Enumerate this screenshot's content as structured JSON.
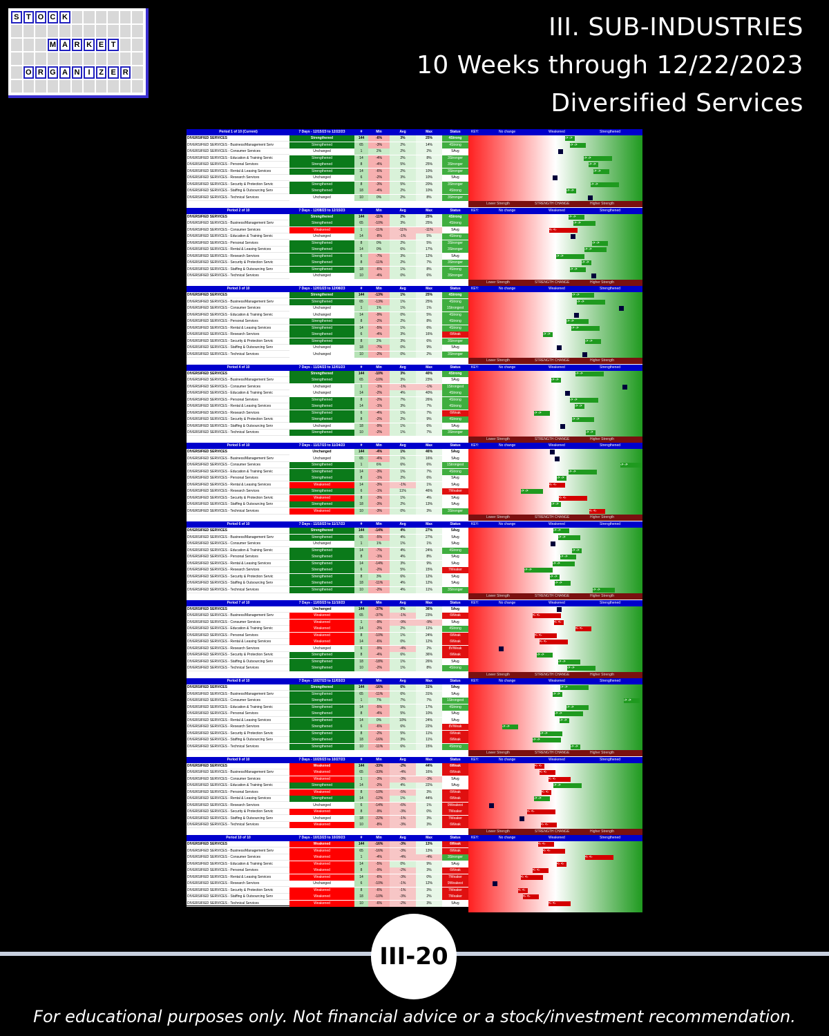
{
  "logo": {
    "rows": [
      [
        "S",
        "T",
        "O",
        "C",
        "K",
        "",
        "",
        "",
        "",
        "",
        ""
      ],
      [
        "",
        "",
        "",
        "",
        "",
        "",
        "",
        "",
        "",
        "",
        ""
      ],
      [
        "",
        "",
        "",
        "M",
        "A",
        "R",
        "K",
        "E",
        "T",
        "",
        ""
      ],
      [
        "",
        "",
        "",
        "",
        "",
        "",
        "",
        "",
        "",
        "",
        ""
      ],
      [
        "",
        "O",
        "R",
        "G",
        "A",
        "N",
        "I",
        "Z",
        "E",
        "R",
        ""
      ],
      [
        "",
        "",
        "",
        "",
        "",
        "",
        "",
        "",
        "",
        "",
        ""
      ]
    ]
  },
  "title": {
    "line1": "III. SUB-INDUSTRIES",
    "line2": "10 Weeks through 12/22/2023",
    "line3": "Diversified Services"
  },
  "table_headers": [
    "#",
    "Min",
    "Avg",
    "Max",
    "Status"
  ],
  "key": {
    "label": "KEY:",
    "no_change": "No change",
    "weakened": "Weakened",
    "strengthened": "Strengthened"
  },
  "strength_bar": {
    "lower": "Lower Strength",
    "change": "STRENGTH CHANGE",
    "higher": "Higher Strength"
  },
  "row_names": [
    "DIVERSIFIED SERVICES",
    "DIVERSIFIED SERVICES - Business/Management Serv",
    "DIVERSIFIED SERVICES - Consumer Services",
    "DIVERSIFIED SERVICES - Education & Training Servic",
    "DIVERSIFIED SERVICES - Personal Services",
    "DIVERSIFIED SERVICES - Rental & Leasing Services",
    "DIVERSIFIED SERVICES - Research Services",
    "DIVERSIFIED SERVICES - Security & Protection Servic",
    "DIVERSIFIED SERVICES - Staffing & Outsourcing Serv",
    "DIVERSIFIED SERVICES - Technical Services"
  ],
  "counts": [
    "144",
    "65",
    "1",
    "14",
    "8",
    "14",
    "6",
    "8",
    "18",
    "10"
  ],
  "periods": [
    {
      "label": "Period 1 of 10 (Current)",
      "dates": "7 Days - 12/15/23 to 12/22/23",
      "rows": [
        [
          "Strengthened",
          "-6%",
          "3%",
          "25%",
          "4Strong"
        ],
        [
          "Strengthened",
          "-3%",
          "2%",
          "14%",
          "4Strong"
        ],
        [
          "Unchanged",
          "2%",
          "2%",
          "2%",
          "5Avg"
        ],
        [
          "Strengthened",
          "-4%",
          "2%",
          "8%",
          "3Stronger"
        ],
        [
          "Strengthened",
          "-4%",
          "5%",
          "25%",
          "3Stronger"
        ],
        [
          "Strengthened",
          "-6%",
          "2%",
          "10%",
          "3Stronger"
        ],
        [
          "Unchanged",
          "-2%",
          "3%",
          "10%",
          "5Avg"
        ],
        [
          "Strengthened",
          "-3%",
          "5%",
          "20%",
          "3Stronger"
        ],
        [
          "Strengthened",
          "-4%",
          "2%",
          "10%",
          "4Strong"
        ],
        [
          "Unchanged",
          "0%",
          "2%",
          "8%",
          "3Stronger"
        ]
      ]
    },
    {
      "label": "Period 2 of 10",
      "dates": "7 Days - 12/08/23 to 12/15/23",
      "rows": [
        [
          "Strengthened",
          "-11%",
          "2%",
          "25%",
          "4Strong"
        ],
        [
          "Strengthened",
          "-10%",
          "3%",
          "25%",
          "4Strong"
        ],
        [
          "Weakened",
          "-11%",
          "-11%",
          "-11%",
          "5Avg"
        ],
        [
          "Unchanged",
          "-8%",
          "-1%",
          "5%",
          "4Strong"
        ],
        [
          "Strengthened",
          "0%",
          "2%",
          "5%",
          "3Stronger"
        ],
        [
          "Strengthened",
          "0%",
          "6%",
          "17%",
          "3Stronger"
        ],
        [
          "Strengthened",
          "-7%",
          "3%",
          "12%",
          "5Avg"
        ],
        [
          "Strengthened",
          "-11%",
          "2%",
          "7%",
          "3Stronger"
        ],
        [
          "Strengthened",
          "-6%",
          "1%",
          "8%",
          "4Strong"
        ],
        [
          "Unchanged",
          "-4%",
          "0%",
          "6%",
          "3Stronger"
        ]
      ]
    },
    {
      "label": "Period 3 of 10",
      "dates": "7 Days - 12/01/23 to 12/08/23",
      "rows": [
        [
          "Strengthened",
          "-13%",
          "1%",
          "25%",
          "4Strong"
        ],
        [
          "Strengthened",
          "-13%",
          "1%",
          "25%",
          "4Strong"
        ],
        [
          "Unchanged",
          "1%",
          "1%",
          "1%",
          "1Strongest"
        ],
        [
          "Unchanged",
          "-9%",
          "0%",
          "5%",
          "4Strong"
        ],
        [
          "Strengthened",
          "-2%",
          "2%",
          "8%",
          "4Strong"
        ],
        [
          "Strengthened",
          "-5%",
          "1%",
          "6%",
          "4Strong"
        ],
        [
          "Strengthened",
          "-4%",
          "3%",
          "16%",
          "6Weak"
        ],
        [
          "Strengthened",
          "2%",
          "3%",
          "6%",
          "3Stronger"
        ],
        [
          "Unchanged",
          "-7%",
          "0%",
          "9%",
          "5Avg"
        ],
        [
          "Unchanged",
          "-2%",
          "0%",
          "2%",
          "3Stronger"
        ]
      ]
    },
    {
      "label": "Period 4 of 10",
      "dates": "7 Days - 11/24/23 to 12/01/23",
      "rows": [
        [
          "Strengthened",
          "-10%",
          "3%",
          "40%",
          "4Strong"
        ],
        [
          "Strengthened",
          "-10%",
          "3%",
          "23%",
          "5Avg"
        ],
        [
          "Unchanged",
          "-1%",
          "-1%",
          "-1%",
          "1Strongest"
        ],
        [
          "Unchanged",
          "-2%",
          "4%",
          "40%",
          "4Strong"
        ],
        [
          "Strengthened",
          "-2%",
          "7%",
          "26%",
          "4Strong"
        ],
        [
          "Strengthened",
          "-1%",
          "3%",
          "7%",
          "4Strong"
        ],
        [
          "Strengthened",
          "-4%",
          "1%",
          "7%",
          "6Weak"
        ],
        [
          "Strengthened",
          "-2%",
          "2%",
          "9%",
          "4Strong"
        ],
        [
          "Unchanged",
          "-9%",
          "1%",
          "6%",
          "5Avg"
        ],
        [
          "Strengthened",
          "-2%",
          "1%",
          "7%",
          "3Stronger"
        ]
      ]
    },
    {
      "label": "Period 5 of 10",
      "dates": "7 Days - 11/17/23 to 11/24/23",
      "rows": [
        [
          "Unchanged",
          "-4%",
          "1%",
          "46%",
          "5Avg"
        ],
        [
          "Unchanged",
          "-4%",
          "1%",
          "16%",
          "5Avg"
        ],
        [
          "Strengthened",
          "6%",
          "6%",
          "6%",
          "1Strongest"
        ],
        [
          "Strengthened",
          "-3%",
          "1%",
          "7%",
          "4Strong"
        ],
        [
          "Strengthened",
          "-1%",
          "2%",
          "6%",
          "5Avg"
        ],
        [
          "Weakened",
          "-3%",
          "-1%",
          "1%",
          "5Avg"
        ],
        [
          "Strengthened",
          "-1%",
          "11%",
          "46%",
          "7Weaker"
        ],
        [
          "Weakened",
          "-3%",
          "1%",
          "4%",
          "5Avg"
        ],
        [
          "Strengthened",
          "-3%",
          "2%",
          "13%",
          "5Avg"
        ],
        [
          "Weakened",
          "-3%",
          "0%",
          "3%",
          "3Stronger"
        ]
      ]
    },
    {
      "label": "Period 6 of 10",
      "dates": "7 Days - 11/10/23 to 11/17/23",
      "rows": [
        [
          "Strengthened",
          "-14%",
          "4%",
          "27%",
          "5Avg"
        ],
        [
          "Strengthened",
          "-5%",
          "4%",
          "27%",
          "5Avg"
        ],
        [
          "Unchanged",
          "1%",
          "1%",
          "1%",
          "5Avg"
        ],
        [
          "Strengthened",
          "-7%",
          "4%",
          "24%",
          "4Strong"
        ],
        [
          "Strengthened",
          "-1%",
          "4%",
          "8%",
          "5Avg"
        ],
        [
          "Strengthened",
          "-14%",
          "3%",
          "9%",
          "5Avg"
        ],
        [
          "Strengthened",
          "-2%",
          "5%",
          "15%",
          "7Weaker"
        ],
        [
          "Strengthened",
          "3%",
          "6%",
          "12%",
          "5Avg"
        ],
        [
          "Strengthened",
          "-11%",
          "4%",
          "12%",
          "5Avg"
        ],
        [
          "Strengthened",
          "-2%",
          "4%",
          "11%",
          "3Stronger"
        ]
      ]
    },
    {
      "label": "Period 7 of 10",
      "dates": "7 Days - 11/03/23 to 11/10/23",
      "rows": [
        [
          "Unchanged",
          "-37%",
          "0%",
          "36%",
          "5Avg"
        ],
        [
          "Weakened",
          "-37%",
          "-1%",
          "23%",
          "6Weak"
        ],
        [
          "Weakened",
          "-9%",
          "-9%",
          "-9%",
          "5Avg"
        ],
        [
          "Weakened",
          "-2%",
          "2%",
          "11%",
          "4Strong"
        ],
        [
          "Weakened",
          "-10%",
          "1%",
          "24%",
          "6Weak"
        ],
        [
          "Weakened",
          "-6%",
          "0%",
          "12%",
          "6Weak"
        ],
        [
          "Unchanged",
          "-9%",
          "-4%",
          "2%",
          "8VWeak"
        ],
        [
          "Strengthened",
          "-4%",
          "6%",
          "36%",
          "6Weak"
        ],
        [
          "Strengthened",
          "-18%",
          "1%",
          "26%",
          "5Avg"
        ],
        [
          "Strengthened",
          "-2%",
          "1%",
          "8%",
          "4Strong"
        ]
      ]
    },
    {
      "label": "Period 8 of 10",
      "dates": "7 Days - 10/27/23 to 11/03/23",
      "rows": [
        [
          "Strengthened",
          "-16%",
          "6%",
          "31%",
          "5Avg"
        ],
        [
          "Strengthened",
          "-11%",
          "6%",
          "31%",
          "5Avg"
        ],
        [
          "Strengthened",
          "7%",
          "7%",
          "7%",
          "1Strongest"
        ],
        [
          "Strengthened",
          "-5%",
          "5%",
          "17%",
          "4Strong"
        ],
        [
          "Strengthened",
          "-4%",
          "5%",
          "10%",
          "5Avg"
        ],
        [
          "Strengthened",
          "0%",
          "10%",
          "24%",
          "5Avg"
        ],
        [
          "Strengthened",
          "-6%",
          "6%",
          "22%",
          "8VWeak"
        ],
        [
          "Strengthened",
          "-2%",
          "5%",
          "11%",
          "6Weak"
        ],
        [
          "Strengthened",
          "-16%",
          "3%",
          "11%",
          "6Weak"
        ],
        [
          "Strengthened",
          "-11%",
          "6%",
          "15%",
          "4Strong"
        ]
      ]
    },
    {
      "label": "Period 9 of 10",
      "dates": "7 Days - 10/20/23 to 10/27/23",
      "rows": [
        [
          "Weakened",
          "-33%",
          "-2%",
          "44%",
          "6Weak"
        ],
        [
          "Weakened",
          "-33%",
          "-4%",
          "16%",
          "6Weak"
        ],
        [
          "Weakened",
          "-3%",
          "-3%",
          "-3%",
          "5Avg"
        ],
        [
          "Strengthened",
          "-2%",
          "4%",
          "22%",
          "5Avg"
        ],
        [
          "Weakened",
          "-10%",
          "-5%",
          "3%",
          "6Weak"
        ],
        [
          "Strengthened",
          "-12%",
          "1%",
          "44%",
          "6Weak"
        ],
        [
          "Unchanged",
          "-14%",
          "-6%",
          "1%",
          "9Weakest"
        ],
        [
          "Weakened",
          "-9%",
          "-3%",
          "0%",
          "7Weaker"
        ],
        [
          "Unchanged",
          "-22%",
          "-1%",
          "3%",
          "7Weaker"
        ],
        [
          "Weakened",
          "-8%",
          "-3%",
          "3%",
          "6Weak"
        ]
      ]
    },
    {
      "label": "Period 10 of 10",
      "dates": "7 Days - 10/13/23 to 10/20/23",
      "rows": [
        [
          "Weakened",
          "-16%",
          "-3%",
          "13%",
          "6Weak"
        ],
        [
          "Weakened",
          "-16%",
          "-3%",
          "13%",
          "6Weak"
        ],
        [
          "Weakened",
          "-4%",
          "-4%",
          "-4%",
          "3Stronger"
        ],
        [
          "Weakened",
          "-5%",
          "0%",
          "9%",
          "5Avg"
        ],
        [
          "Weakened",
          "-9%",
          "-2%",
          "3%",
          "6Weak"
        ],
        [
          "Weakened",
          "-6%",
          "-3%",
          "0%",
          "7Weaker"
        ],
        [
          "Unchanged",
          "-10%",
          "-1%",
          "12%",
          "9Weakest"
        ],
        [
          "Weakened",
          "-6%",
          "-1%",
          "3%",
          "7Weaker"
        ],
        [
          "Weakened",
          "-10%",
          "-3%",
          "2%",
          "7Weaker"
        ],
        [
          "Weakened",
          "-6%",
          "-2%",
          "3%",
          "5Avg"
        ]
      ]
    }
  ],
  "page_number": "III-20",
  "footer": "For educational purposes only. Not financial advice or a stock/investment recommendation."
}
